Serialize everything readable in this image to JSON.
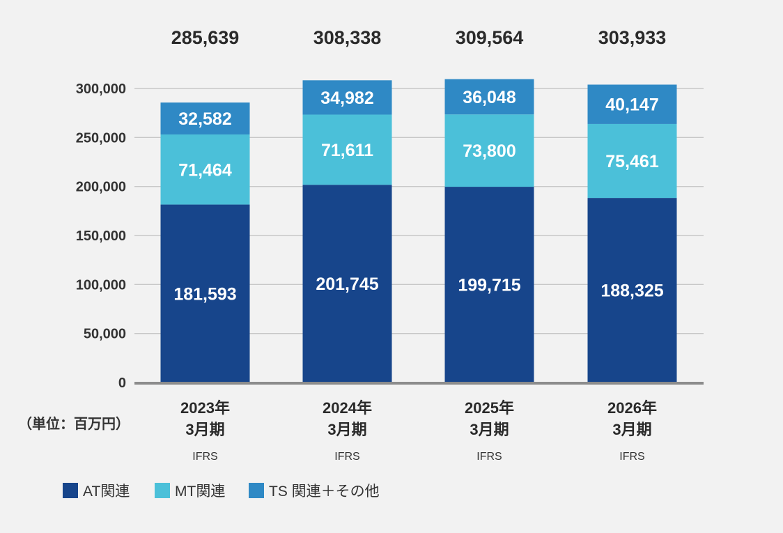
{
  "chart_data": {
    "type": "bar",
    "stacked": true,
    "unit_label": "（単位：百万円）",
    "categories": [
      "2023年",
      "2024年",
      "2025年",
      "2026年"
    ],
    "category_sublabels": [
      "3月期",
      "3月期",
      "3月期",
      "3月期"
    ],
    "category_standards": [
      "IFRS",
      "IFRS",
      "IFRS",
      "IFRS"
    ],
    "totals": [
      285639,
      308338,
      309564,
      303933
    ],
    "total_labels": [
      "285,639",
      "308,338",
      "309,564",
      "303,933"
    ],
    "ylim": [
      0,
      300000
    ],
    "yticks": [
      0,
      50000,
      100000,
      150000,
      200000,
      250000,
      300000
    ],
    "ytick_labels": [
      "0",
      "50,000",
      "100,000",
      "150,000",
      "200,000",
      "250,000",
      "300,000"
    ],
    "grid": true,
    "legend_position": "bottom-left",
    "series": [
      {
        "name": "AT関連",
        "color": "#17458b",
        "values": [
          181593,
          201745,
          199715,
          188325
        ],
        "labels": [
          "181,593",
          "201,745",
          "199,715",
          "188,325"
        ]
      },
      {
        "name": "MT関連",
        "color": "#4bc0d9",
        "values": [
          71464,
          71611,
          73800,
          75461
        ],
        "labels": [
          "71,464",
          "71,611",
          "73,800",
          "75,461"
        ]
      },
      {
        "name": "TS 関連＋その他",
        "color": "#2f89c5",
        "values": [
          32582,
          34982,
          36048,
          40147
        ],
        "labels": [
          "32,582",
          "34,982",
          "36,048",
          "40,147"
        ]
      }
    ]
  }
}
